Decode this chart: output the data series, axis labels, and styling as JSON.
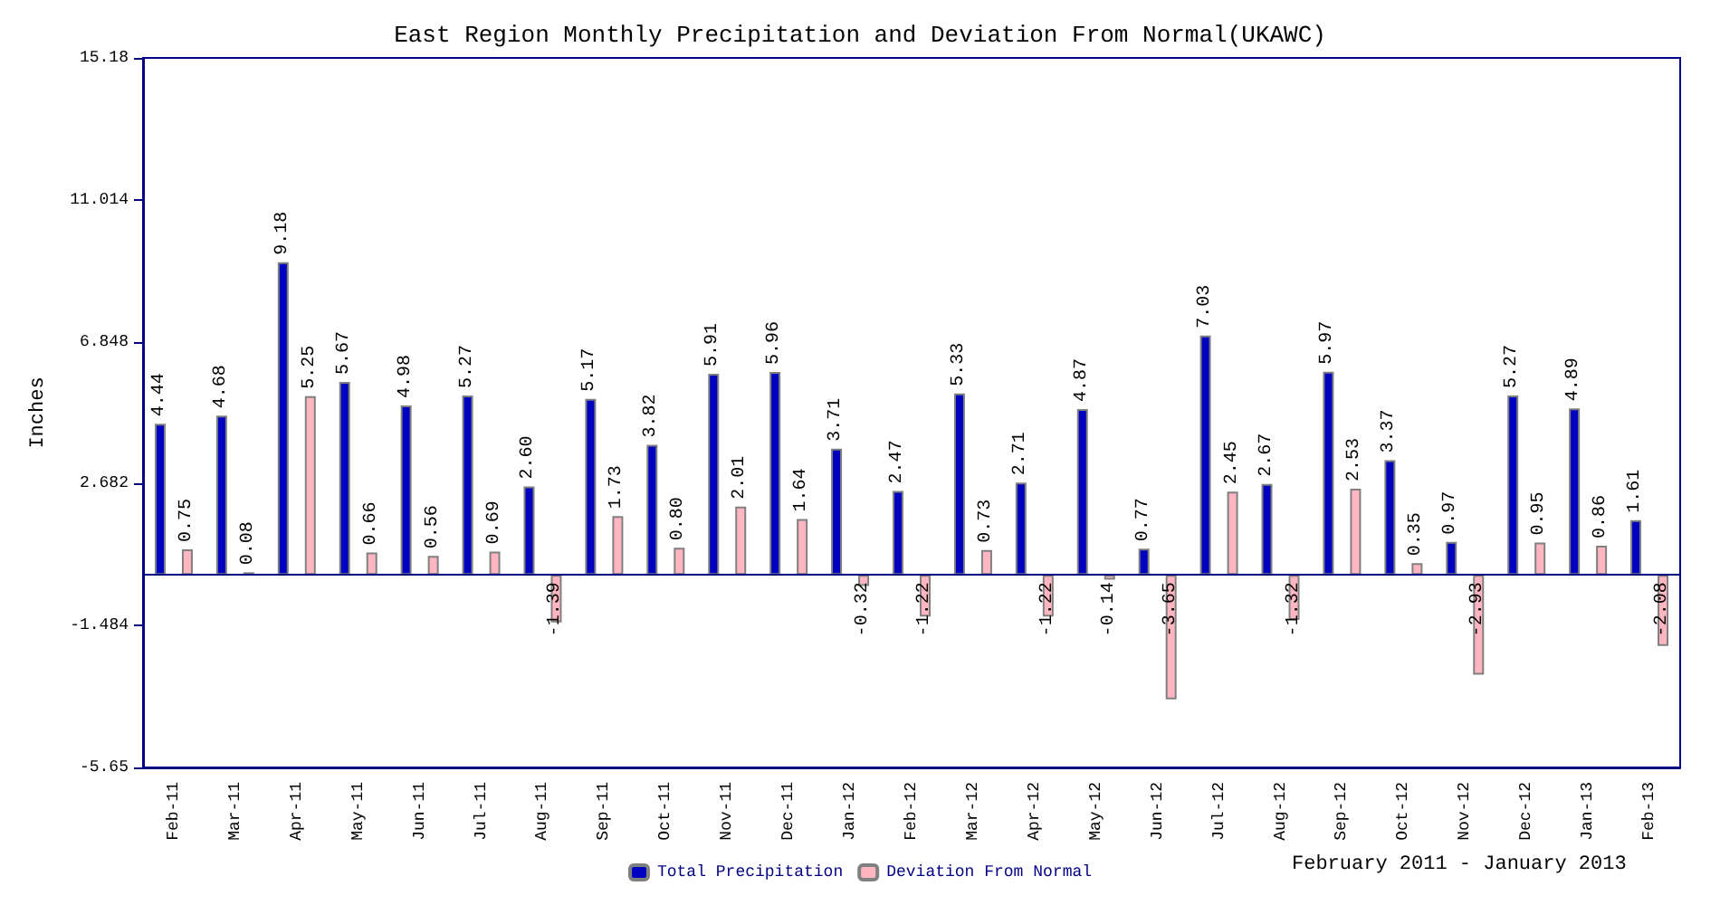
{
  "chart_data": {
    "type": "bar",
    "title": "East Region Monthly Precipitation and Deviation From Normal(UKAWC)",
    "xlabel": "February 2011 - January 2013",
    "ylabel": "Inches",
    "categories": [
      "Feb-11",
      "Mar-11",
      "Apr-11",
      "May-11",
      "Jun-11",
      "Jul-11",
      "Aug-11",
      "Sep-11",
      "Oct-11",
      "Nov-11",
      "Dec-11",
      "Jan-12",
      "Feb-12",
      "Mar-12",
      "Apr-12",
      "May-12",
      "Jun-12",
      "Jul-12",
      "Aug-12",
      "Sep-12",
      "Oct-12",
      "Nov-12",
      "Dec-12",
      "Jan-13",
      "Feb-13"
    ],
    "series": [
      {
        "name": "Total Precipitation",
        "color": "#0000c0",
        "values": [
          4.44,
          4.68,
          9.18,
          5.67,
          4.98,
          5.27,
          2.6,
          5.17,
          3.82,
          5.91,
          5.96,
          3.71,
          2.47,
          5.33,
          2.71,
          4.87,
          0.77,
          7.03,
          2.67,
          5.97,
          3.37,
          0.97,
          5.27,
          4.89,
          1.61
        ],
        "value_labels": [
          "4.44",
          "4.68",
          "9.18",
          "5.67",
          "4.98",
          "5.27",
          "2.60",
          "5.17",
          "3.82",
          "5.91",
          "5.96",
          "3.71",
          "2.47",
          "5.33",
          "2.71",
          "4.87",
          "0.77",
          "7.03",
          "2.67",
          "5.97",
          "3.37",
          "0.97",
          "5.27",
          "4.89",
          "1.61"
        ]
      },
      {
        "name": "Deviation From Normal",
        "color": "#ffb6c1",
        "values": [
          0.75,
          0.08,
          5.25,
          0.66,
          0.56,
          0.69,
          -1.39,
          1.73,
          0.8,
          2.01,
          1.64,
          -0.32,
          -1.22,
          0.73,
          -1.22,
          -0.14,
          -3.65,
          2.45,
          -1.32,
          2.53,
          0.35,
          -2.93,
          0.95,
          0.86,
          -2.08
        ],
        "value_labels": [
          "0.75",
          "0.08",
          "5.25",
          "0.66",
          "0.56",
          "0.69",
          "-1.39",
          "1.73",
          "0.80",
          "2.01",
          "1.64",
          "-0.32",
          "-1.22",
          "0.73",
          "-1.22",
          "-0.14",
          "-3.65",
          "2.45",
          "-1.32",
          "2.53",
          "0.35",
          "-2.93",
          "0.95",
          "0.86",
          "-2.08"
        ]
      }
    ],
    "ylim": [
      -5.65,
      15.18
    ],
    "yticks": [
      -5.65,
      -1.484,
      2.682,
      6.848,
      11.014,
      15.18
    ],
    "grid": false,
    "legend": "bottom",
    "ref_lines": [
      {
        "axis": "y",
        "value": 0,
        "color": "#000080"
      }
    ]
  }
}
